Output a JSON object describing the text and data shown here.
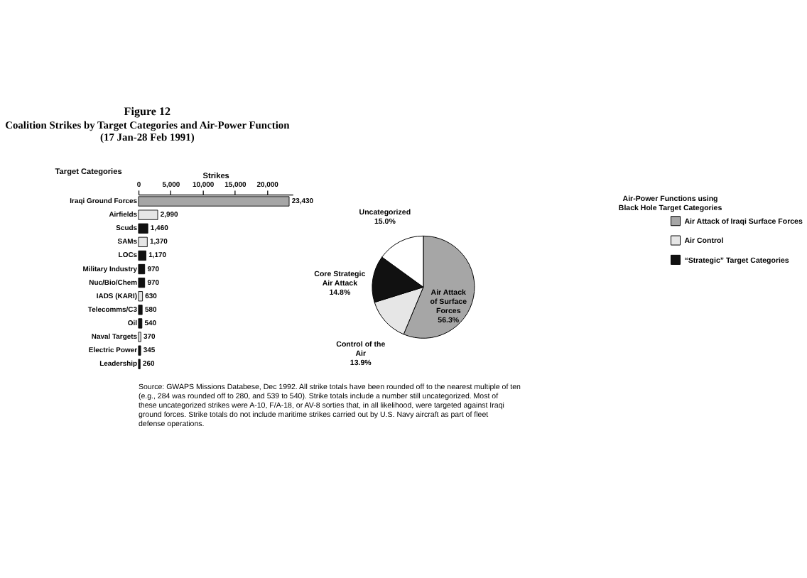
{
  "chart_data": [
    {
      "type": "bar",
      "orientation": "horizontal",
      "title": "Figure 12",
      "subtitle": "Coalition Strikes by Target Categories and Air-Power Function (17 Jan-28 Feb 1991)",
      "xlabel": "Strikes",
      "ylabel": "Target Categories",
      "legend_title": "Air-Power Functions using Black Hole Target Categories",
      "legend": "right",
      "grid": false,
      "categories": [
        "Iraqi Ground Forces",
        "Airfields",
        "Scuds",
        "SAMs",
        "LOCs",
        "Military Industry",
        "Nuc/Bio/Chem",
        "IADS (KARI)",
        "Telecomms/C3",
        "Oil",
        "Naval Targets",
        "Electric Power",
        "Leadership"
      ],
      "series": [
        {
          "name": "Air Attack of Iraqi Surface Forces",
          "color": "#a6a6a6",
          "values": [
            23430,
            null,
            null,
            null,
            null,
            null,
            null,
            null,
            null,
            null,
            null,
            null,
            null
          ],
          "value_labels": [
            "23,430",
            null,
            null,
            null,
            null,
            null,
            null,
            null,
            null,
            null,
            null,
            null,
            null
          ]
        },
        {
          "name": "Air Control",
          "color": "#e6e6e6",
          "values": [
            null,
            2990,
            null,
            1370,
            null,
            null,
            null,
            630,
            null,
            null,
            370,
            null,
            null
          ],
          "value_labels": [
            null,
            "2,990",
            null,
            "1,370",
            null,
            null,
            null,
            "630",
            null,
            null,
            "370",
            null,
            null
          ]
        },
        {
          "name": "“Strategic” Target Categories",
          "color": "#111111",
          "values": [
            null,
            null,
            1460,
            null,
            1170,
            970,
            970,
            null,
            580,
            540,
            null,
            345,
            260
          ],
          "value_labels": [
            null,
            null,
            "1,460",
            null,
            "1,170",
            "970",
            "970",
            null,
            "580",
            "540",
            null,
            "345",
            "260"
          ]
        }
      ],
      "xlim": [
        0,
        24000
      ],
      "xticks": [
        {
          "value": 0,
          "label": "0"
        },
        {
          "value": 5000,
          "label": "5,000"
        },
        {
          "value": 10000,
          "label": "10,000"
        },
        {
          "value": 15000,
          "label": "15,000"
        },
        {
          "value": 20000,
          "label": "20,000"
        }
      ],
      "annotations": [
        "Source: GWAPS Missions Databese, Dec 1992.  All strike totals have been rounded off to the nearest multiple of ten (e.g., 284 was rounded off to 280, and 539 to 540).  Strike totals include a number still uncategorized.  Most of these uncategorized strikes were A-10, F/A-18, or AV-8 sorties that, in all likelihood, were targeted against Iraqi ground forces.  Strike totals do not include maritime strikes carried out by U.S. Navy aircraft as part of fleet defense operations."
      ]
    },
    {
      "type": "pie",
      "categories": [
        "Air Attack of Surface Forces",
        "Control of the Air",
        "Core Strategic Air Attack",
        "Uncategorized"
      ],
      "values": [
        56.3,
        13.9,
        14.8,
        15.0
      ],
      "colors": [
        "#a6a6a6",
        "#e6e6e6",
        "#111111",
        "#ffffff"
      ],
      "value_labels": [
        "56.3%",
        "13.9%",
        "14.8%",
        "15.0%"
      ]
    }
  ]
}
